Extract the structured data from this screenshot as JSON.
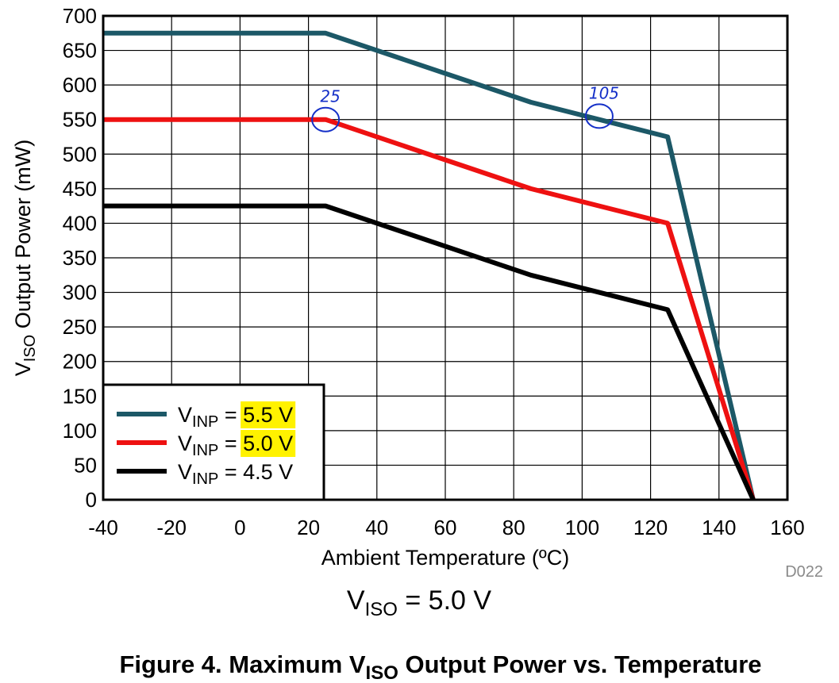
{
  "chart_data": {
    "type": "line",
    "x_ticks": [
      -40,
      -20,
      0,
      20,
      40,
      60,
      80,
      100,
      120,
      140,
      160
    ],
    "y_ticks": [
      0,
      50,
      100,
      150,
      200,
      250,
      300,
      350,
      400,
      450,
      500,
      550,
      600,
      650,
      700
    ],
    "xlim": [
      -40,
      160
    ],
    "ylim": [
      0,
      700
    ],
    "xlabel": "Ambient Temperature (ºC)",
    "ylabel": {
      "main": "V",
      "sub": "ISO",
      "rest": " Output Power (mW)"
    },
    "grid": true,
    "legend_position": "bottom-left",
    "series": [
      {
        "label": {
          "main": "V",
          "sub": "INP",
          "eq": " = ",
          "value": "5.5 V"
        },
        "highlighted": true,
        "color": "#1c5867",
        "x": [
          -40,
          25,
          85,
          125,
          150
        ],
        "y": [
          675,
          675,
          575,
          525,
          0
        ]
      },
      {
        "label": {
          "main": "V",
          "sub": "INP",
          "eq": " = ",
          "value": "5.0 V"
        },
        "highlighted": true,
        "color": "#ee1111",
        "x": [
          -40,
          25,
          85,
          125,
          150
        ],
        "y": [
          550,
          550,
          450,
          400,
          0
        ]
      },
      {
        "label": {
          "main": "V",
          "sub": "INP",
          "eq": " = ",
          "value": "4.5 V"
        },
        "highlighted": false,
        "color": "#000000",
        "x": [
          -40,
          25,
          85,
          125,
          150
        ],
        "y": [
          425,
          425,
          325,
          275,
          0
        ]
      }
    ],
    "annotations": [
      {
        "text": "25",
        "x": 25,
        "y": 550
      },
      {
        "text": "105",
        "x": 105,
        "y": 555
      }
    ],
    "figure_code": "D022",
    "subcaption": {
      "main": "V",
      "sub": "ISO",
      "rest": " = 5.0 V"
    },
    "caption": {
      "pre": "Figure 4. Maximum V",
      "sub": "ISO",
      "post": " Output Power vs. Temperature"
    }
  },
  "colors": {
    "highlight": "#fff200",
    "annotation_ink": "#1530c8",
    "grid": "#000000"
  }
}
